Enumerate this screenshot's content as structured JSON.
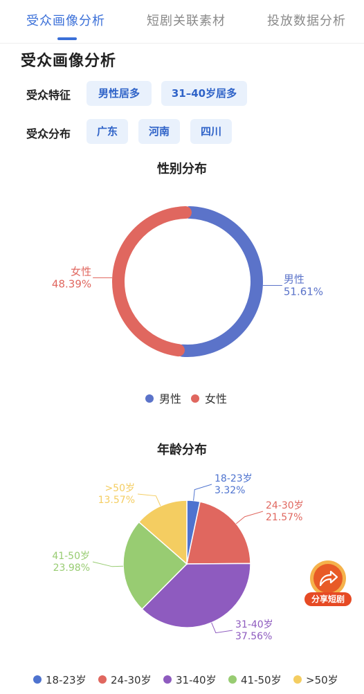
{
  "tabs": [
    {
      "label": "受众画像分析",
      "active": true
    },
    {
      "label": "短剧关联素材",
      "active": false
    },
    {
      "label": "投放数据分析",
      "active": false
    }
  ],
  "section_title": "受众画像分析",
  "features": {
    "label": "受众特征",
    "chips": [
      "男性居多",
      "31–40岁居多"
    ]
  },
  "distribution": {
    "label": "受众分布",
    "chips": [
      "广东",
      "河南",
      "四川"
    ]
  },
  "share_button": {
    "label": "分享短剧",
    "icon": "share-arrow-icon"
  },
  "colors": {
    "accent": "#3a6fd8",
    "male": "#5b73c9",
    "female": "#e0675f",
    "a18": "#4e73cf",
    "a24": "#e0675f",
    "a31": "#8e5bbf",
    "a41": "#98cc72",
    "a50": "#f4cd61"
  },
  "chart_data": [
    {
      "type": "pie",
      "donut": true,
      "title": "性别分布",
      "categories": [
        "男性",
        "女性"
      ],
      "values": [
        51.61,
        48.39
      ],
      "labels": [
        "51.61%",
        "48.39%"
      ],
      "legend": "bottom"
    },
    {
      "type": "pie",
      "title": "年龄分布",
      "categories": [
        "18-23岁",
        "24-30岁",
        "31-40岁",
        "41-50岁",
        ">50岁"
      ],
      "values": [
        3.32,
        21.57,
        37.56,
        23.98,
        13.57
      ],
      "labels": [
        "3.32%",
        "21.57%",
        "37.56%",
        "23.98%",
        "13.57%"
      ],
      "legend": "bottom"
    }
  ]
}
